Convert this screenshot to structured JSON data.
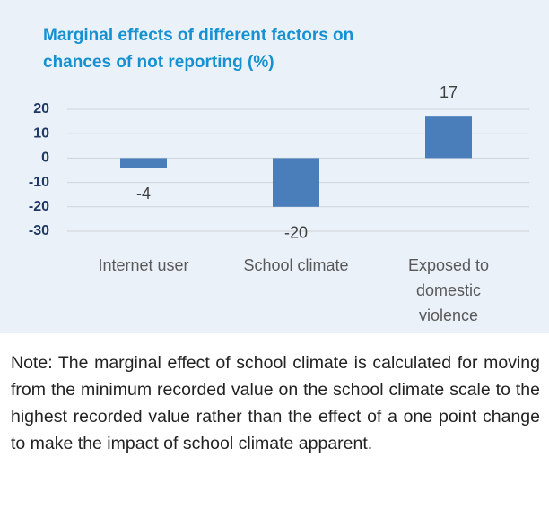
{
  "chart_data": {
    "type": "bar",
    "title": [
      "Marginal effects of different factors on",
      "chances of not reporting (%)"
    ],
    "categories": [
      "Internet user",
      "School climate",
      "Exposed to domestic violence"
    ],
    "values": [
      -4,
      -20,
      17
    ],
    "color": "#4a7ebb",
    "ylim": [
      -30,
      20
    ],
    "yticks": [
      -30,
      -20,
      -10,
      0,
      10,
      20
    ],
    "grid": true,
    "note": "Note: The marginal effect of school climate is calcu­lated for moving from the minimum recorded value on the school climate scale to the highest recorded value rather than the effect of a one point change to make the impact of school climate apparent."
  }
}
